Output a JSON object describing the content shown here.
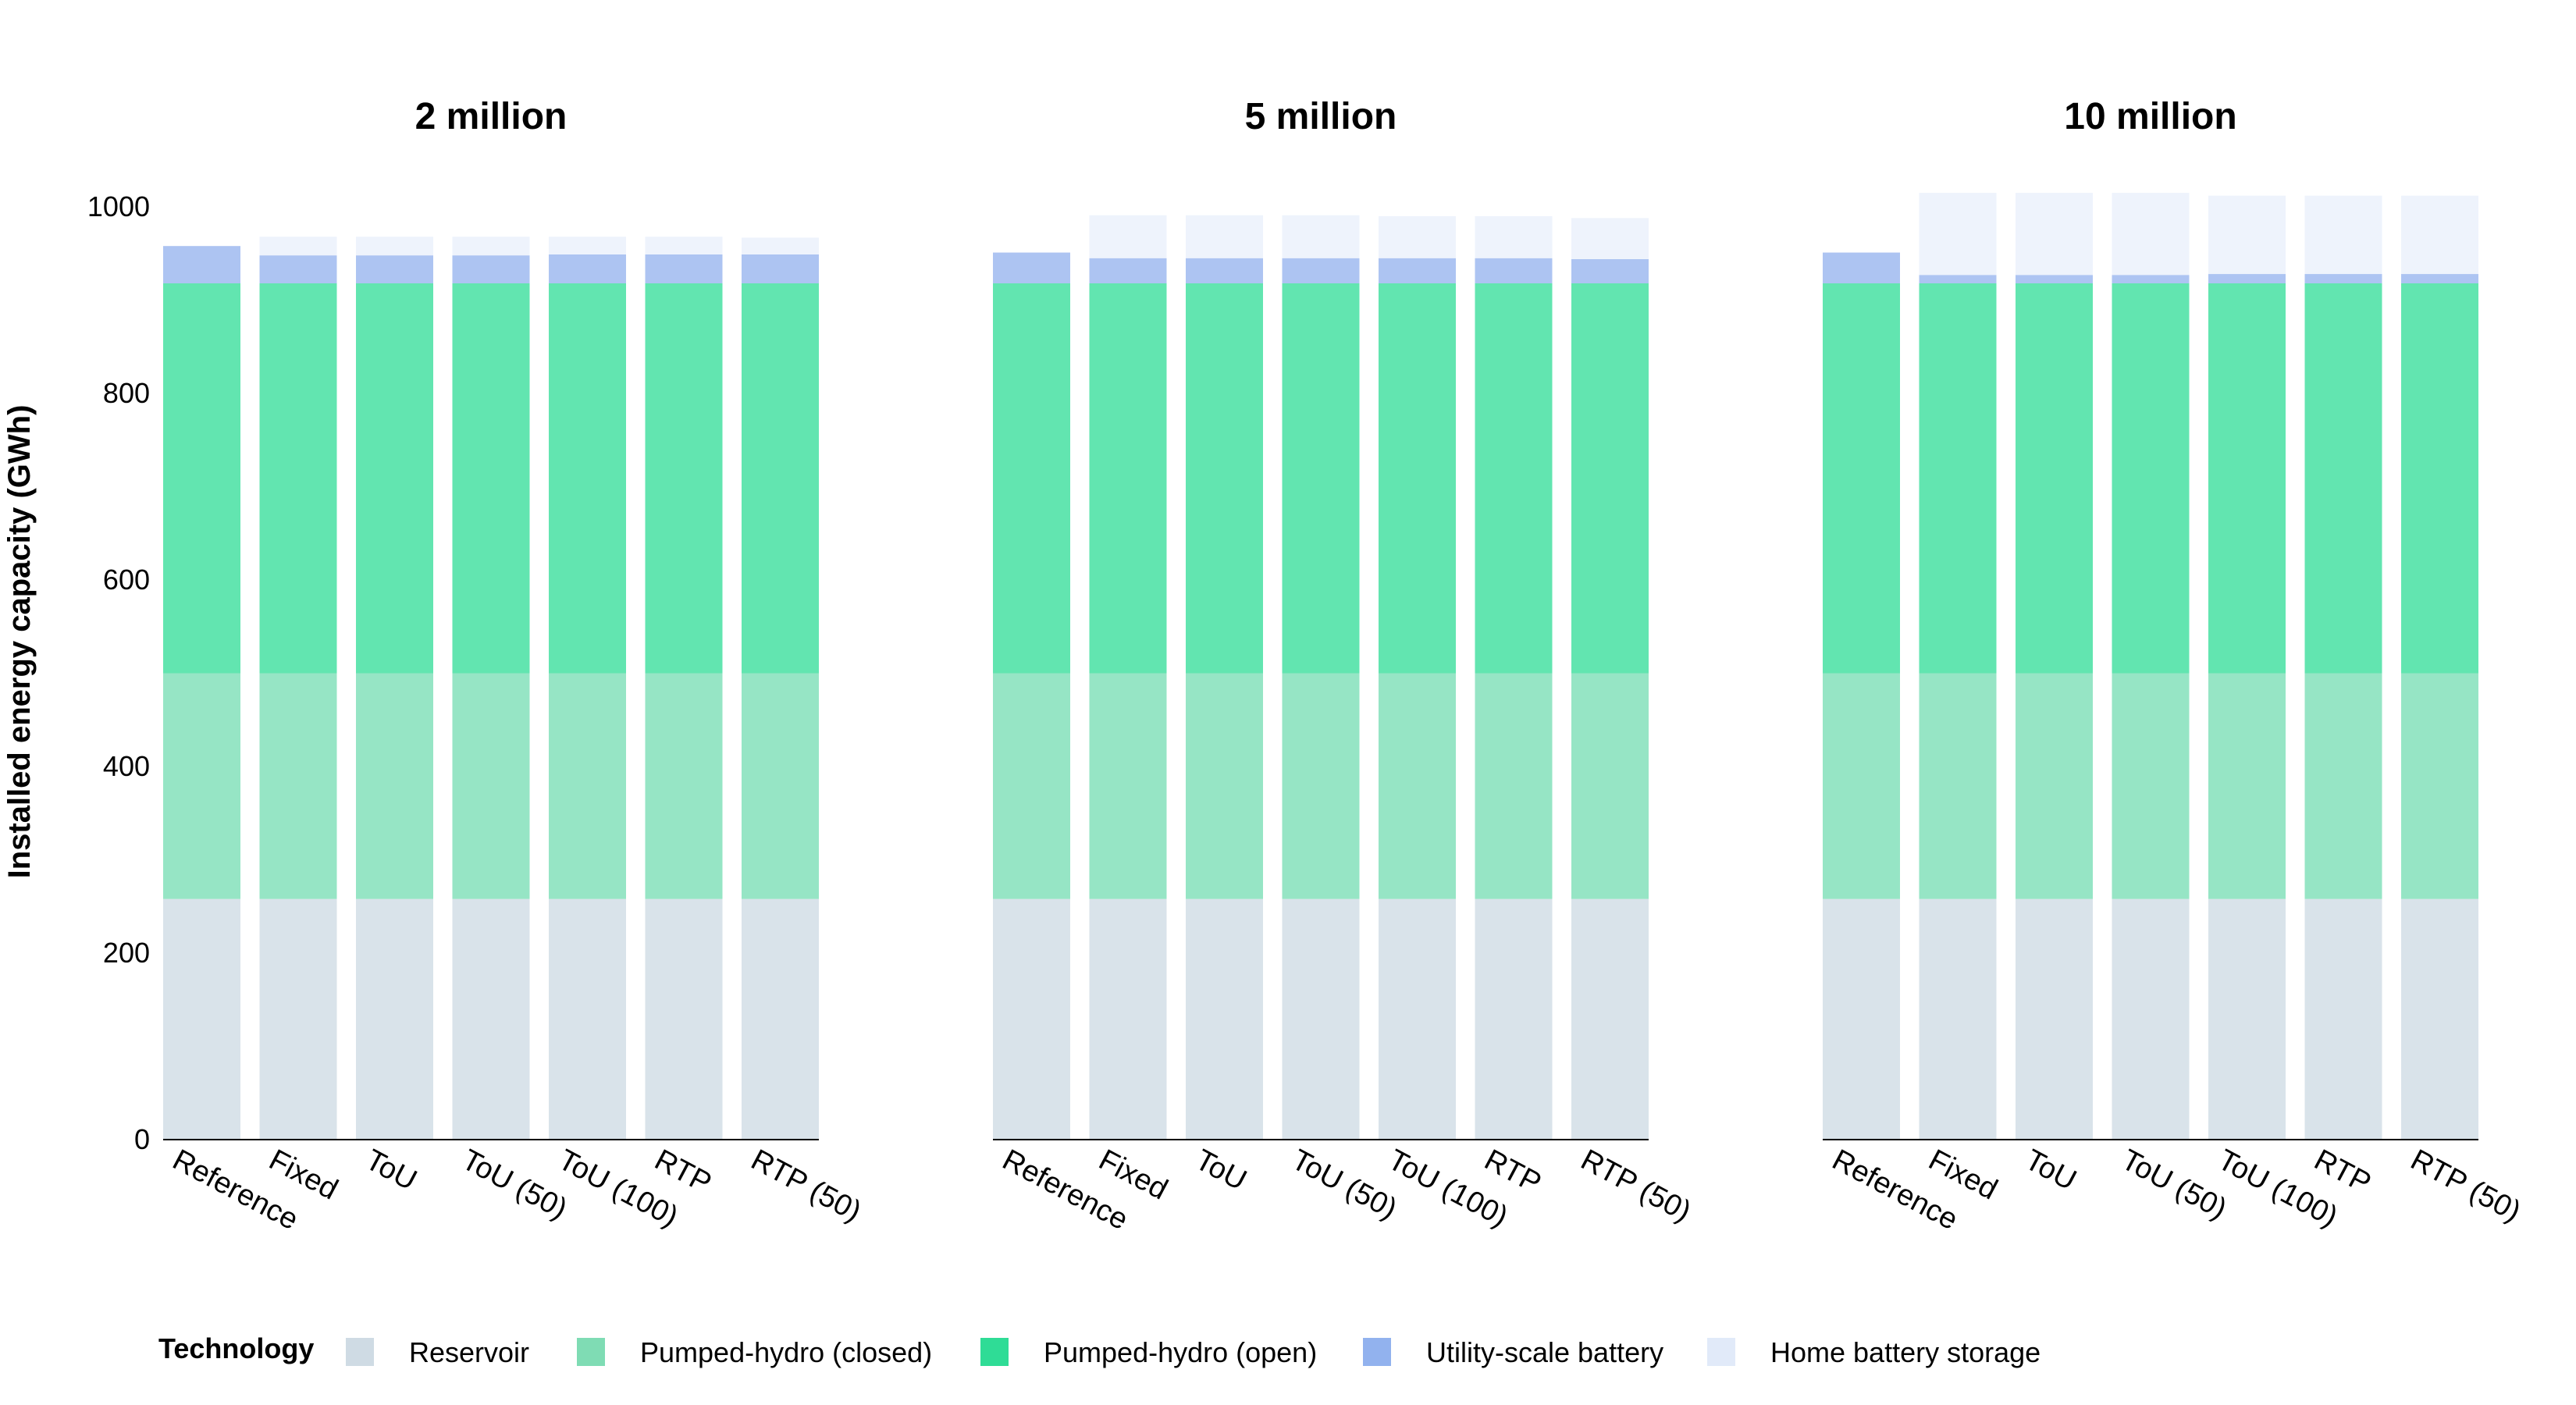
{
  "chart_data": {
    "type": "bar",
    "stacked": true,
    "ylabel": "Installed energy capacity (GWh)",
    "ylim": [
      0,
      1000
    ],
    "yticks": [
      0,
      200,
      400,
      600,
      800,
      1000
    ],
    "categories": [
      "Reference",
      "Fixed",
      "ToU",
      "ToU (50)",
      "ToU (100)",
      "RTP",
      "RTP (50)"
    ],
    "legend": {
      "title": "Technology",
      "position": "bottom"
    },
    "series_meta": [
      {
        "name": "Reservoir",
        "color": "#d9e3ea",
        "swatch": "#cfdbe4"
      },
      {
        "name": "Pumped-hydro (closed)",
        "color": "#96e5c5",
        "swatch": "#7fdcb4"
      },
      {
        "name": "Pumped-hydro (open)",
        "color": "#62e5b0",
        "swatch": "#2fdc96"
      },
      {
        "name": "Utility-scale battery",
        "color": "#adc4f2",
        "swatch": "#92b2ee"
      },
      {
        "name": "Home battery storage",
        "color": "#eef3fc",
        "swatch": "#e1eaf9"
      }
    ],
    "panels": [
      {
        "title": "2 million",
        "series": [
          {
            "name": "Reservoir",
            "values": [
              258,
              258,
              258,
              258,
              258,
              258,
              258
            ]
          },
          {
            "name": "Pumped-hydro (closed)",
            "values": [
              242,
              242,
              242,
              242,
              242,
              242,
              242
            ]
          },
          {
            "name": "Pumped-hydro (open)",
            "values": [
              418,
              418,
              418,
              418,
              418,
              418,
              418
            ]
          },
          {
            "name": "Utility-scale battery",
            "values": [
              40,
              30,
              30,
              30,
              31,
              31,
              31
            ]
          },
          {
            "name": "Home battery storage",
            "values": [
              0,
              20,
              20,
              20,
              19,
              19,
              18
            ]
          }
        ]
      },
      {
        "title": "5 million",
        "series": [
          {
            "name": "Reservoir",
            "values": [
              258,
              258,
              258,
              258,
              258,
              258,
              258
            ]
          },
          {
            "name": "Pumped-hydro (closed)",
            "values": [
              242,
              242,
              242,
              242,
              242,
              242,
              242
            ]
          },
          {
            "name": "Pumped-hydro (open)",
            "values": [
              418,
              418,
              418,
              418,
              418,
              418,
              418
            ]
          },
          {
            "name": "Utility-scale battery",
            "values": [
              33,
              27,
              27,
              27,
              27,
              27,
              26
            ]
          },
          {
            "name": "Home battery storage",
            "values": [
              0,
              46,
              46,
              46,
              45,
              45,
              44
            ]
          }
        ]
      },
      {
        "title": "10 million",
        "series": [
          {
            "name": "Reservoir",
            "values": [
              258,
              258,
              258,
              258,
              258,
              258,
              258
            ]
          },
          {
            "name": "Pumped-hydro (closed)",
            "values": [
              242,
              242,
              242,
              242,
              242,
              242,
              242
            ]
          },
          {
            "name": "Pumped-hydro (open)",
            "values": [
              418,
              418,
              418,
              418,
              418,
              418,
              418
            ]
          },
          {
            "name": "Utility-scale battery",
            "values": [
              33,
              9,
              9,
              9,
              10,
              10,
              10
            ]
          },
          {
            "name": "Home battery storage",
            "values": [
              0,
              88,
              88,
              88,
              84,
              84,
              84
            ]
          }
        ]
      }
    ]
  }
}
